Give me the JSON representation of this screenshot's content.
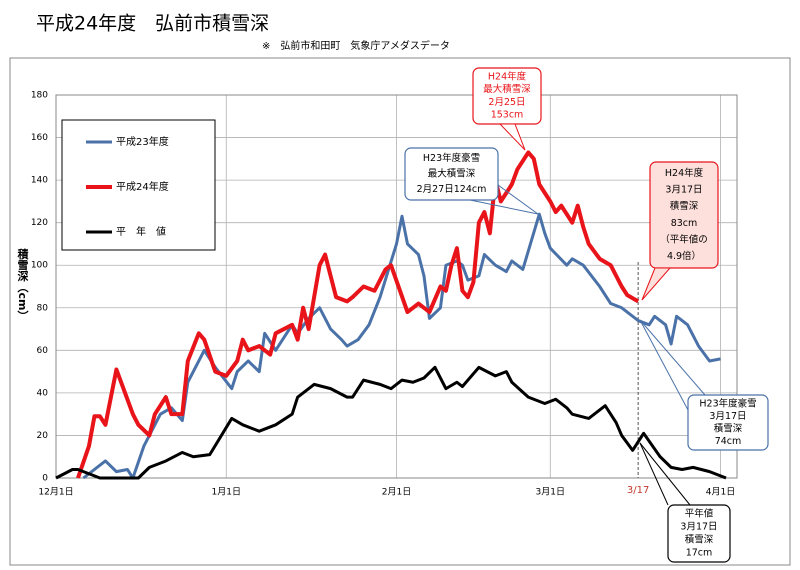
{
  "chart_data": {
    "type": "line",
    "title": "平成24年度　弘前市積雪深",
    "subtitle": "※　弘前市和田町　気象庁アメダスデータ",
    "ylabel": "積雪深（cm）",
    "xlim": [
      0,
      124
    ],
    "xticks": [
      {
        "value": 0,
        "label": "12月1日"
      },
      {
        "value": 31,
        "label": "1月1日"
      },
      {
        "value": 62,
        "label": "2月1日"
      },
      {
        "value": 90,
        "label": "3月1日"
      },
      {
        "value": 121,
        "label": "4月1日"
      }
    ],
    "ylim": [
      0,
      180
    ],
    "yticks": [
      0,
      20,
      40,
      60,
      80,
      100,
      120,
      140,
      160,
      180
    ],
    "grid": true,
    "legend": "upper left",
    "series": [
      {
        "name": "平成23年度",
        "color": "#4a72a8",
        "x": [
          5,
          9,
          11,
          13,
          14,
          16,
          19,
          21,
          23,
          24,
          26,
          27,
          29,
          32,
          33,
          35,
          37,
          38,
          40,
          43,
          44,
          46,
          48,
          50,
          52,
          53,
          55,
          57,
          59,
          62,
          63,
          64,
          66,
          67,
          68,
          70,
          71,
          73,
          74,
          75,
          77,
          78,
          80,
          82,
          83,
          85,
          88,
          89,
          90,
          93,
          94,
          96,
          99,
          101,
          103,
          106,
          108,
          109,
          111,
          112,
          113,
          115,
          117,
          119,
          121
        ],
        "values": [
          0,
          8,
          3,
          4,
          0,
          15,
          30,
          33,
          27,
          45,
          55,
          60,
          52,
          42,
          50,
          55,
          50,
          68,
          60,
          72,
          68,
          75,
          80,
          70,
          65,
          62,
          65,
          72,
          85,
          110,
          123,
          110,
          105,
          95,
          75,
          80,
          100,
          102,
          100,
          93,
          95,
          105,
          100,
          97,
          102,
          98,
          124,
          115,
          108,
          100,
          103,
          100,
          90,
          82,
          80,
          74,
          72,
          76,
          72,
          63,
          76,
          72,
          62,
          55,
          56
        ]
      },
      {
        "name": "平成24年度",
        "color": "#e8141a",
        "x": [
          4,
          6,
          7,
          8,
          9,
          11,
          13,
          14,
          15,
          17,
          18,
          20,
          21,
          23,
          24,
          26,
          27,
          29,
          31,
          33,
          34,
          35,
          37,
          39,
          40,
          43,
          44,
          45,
          46,
          48,
          49,
          51,
          53,
          54,
          56,
          58,
          60,
          61,
          64,
          66,
          68,
          70,
          71,
          72,
          73,
          74,
          75,
          76,
          77,
          78,
          79,
          80,
          81,
          83,
          84,
          86,
          87,
          88,
          90,
          91,
          92,
          94,
          95,
          96,
          97,
          99,
          101,
          103,
          104,
          106
        ],
        "values": [
          0,
          15,
          29,
          29,
          25,
          51,
          37,
          30,
          25,
          20,
          30,
          38,
          30,
          30,
          55,
          68,
          65,
          50,
          48,
          55,
          65,
          60,
          62,
          58,
          68,
          72,
          65,
          80,
          70,
          100,
          105,
          85,
          83,
          85,
          90,
          88,
          98,
          100,
          78,
          82,
          78,
          90,
          88,
          100,
          108,
          88,
          85,
          92,
          120,
          125,
          115,
          140,
          130,
          138,
          145,
          153,
          150,
          138,
          130,
          125,
          128,
          120,
          128,
          118,
          110,
          103,
          100,
          90,
          86,
          83
        ]
      },
      {
        "name": "平　年　値",
        "color": "#000000",
        "x": [
          0,
          3,
          4,
          6,
          8,
          15,
          17,
          20,
          23,
          25,
          28,
          32,
          34,
          37,
          40,
          43,
          44,
          47,
          50,
          53,
          54,
          56,
          59,
          61,
          63,
          65,
          67,
          69,
          71,
          73,
          74,
          77,
          80,
          82,
          83,
          86,
          89,
          91,
          93,
          94,
          97,
          100,
          102,
          103,
          105,
          107,
          110,
          112,
          114,
          116,
          119,
          122
        ],
        "values": [
          0,
          4,
          4,
          2,
          0,
          0,
          5,
          8,
          12,
          10,
          11,
          28,
          25,
          22,
          25,
          30,
          38,
          44,
          42,
          38,
          38,
          46,
          44,
          42,
          46,
          45,
          47,
          52,
          42,
          45,
          43,
          52,
          48,
          50,
          45,
          38,
          35,
          37,
          33,
          30,
          28,
          34,
          26,
          20,
          13,
          21,
          10,
          5,
          4,
          5,
          3,
          0
        ]
      }
    ],
    "marker_x": 106,
    "marker_label": "3/17",
    "annotations": [
      {
        "lines": [
          "H24年度",
          "最大積雪深",
          "2月25日",
          "153cm"
        ]
      },
      {
        "lines": [
          "H23年度豪雪",
          "最大積雪深",
          "2月27日124cm"
        ]
      },
      {
        "lines": [
          "H24年度",
          "3月17日",
          "積雪深",
          "83cm",
          "（平年値の",
          "4.9倍）"
        ]
      },
      {
        "lines": [
          "H23年度豪雪",
          "3月17日",
          "積雪深",
          "74cm"
        ]
      },
      {
        "lines": [
          "平年値",
          "3月17日",
          "積雪深",
          "17cm"
        ]
      }
    ]
  }
}
